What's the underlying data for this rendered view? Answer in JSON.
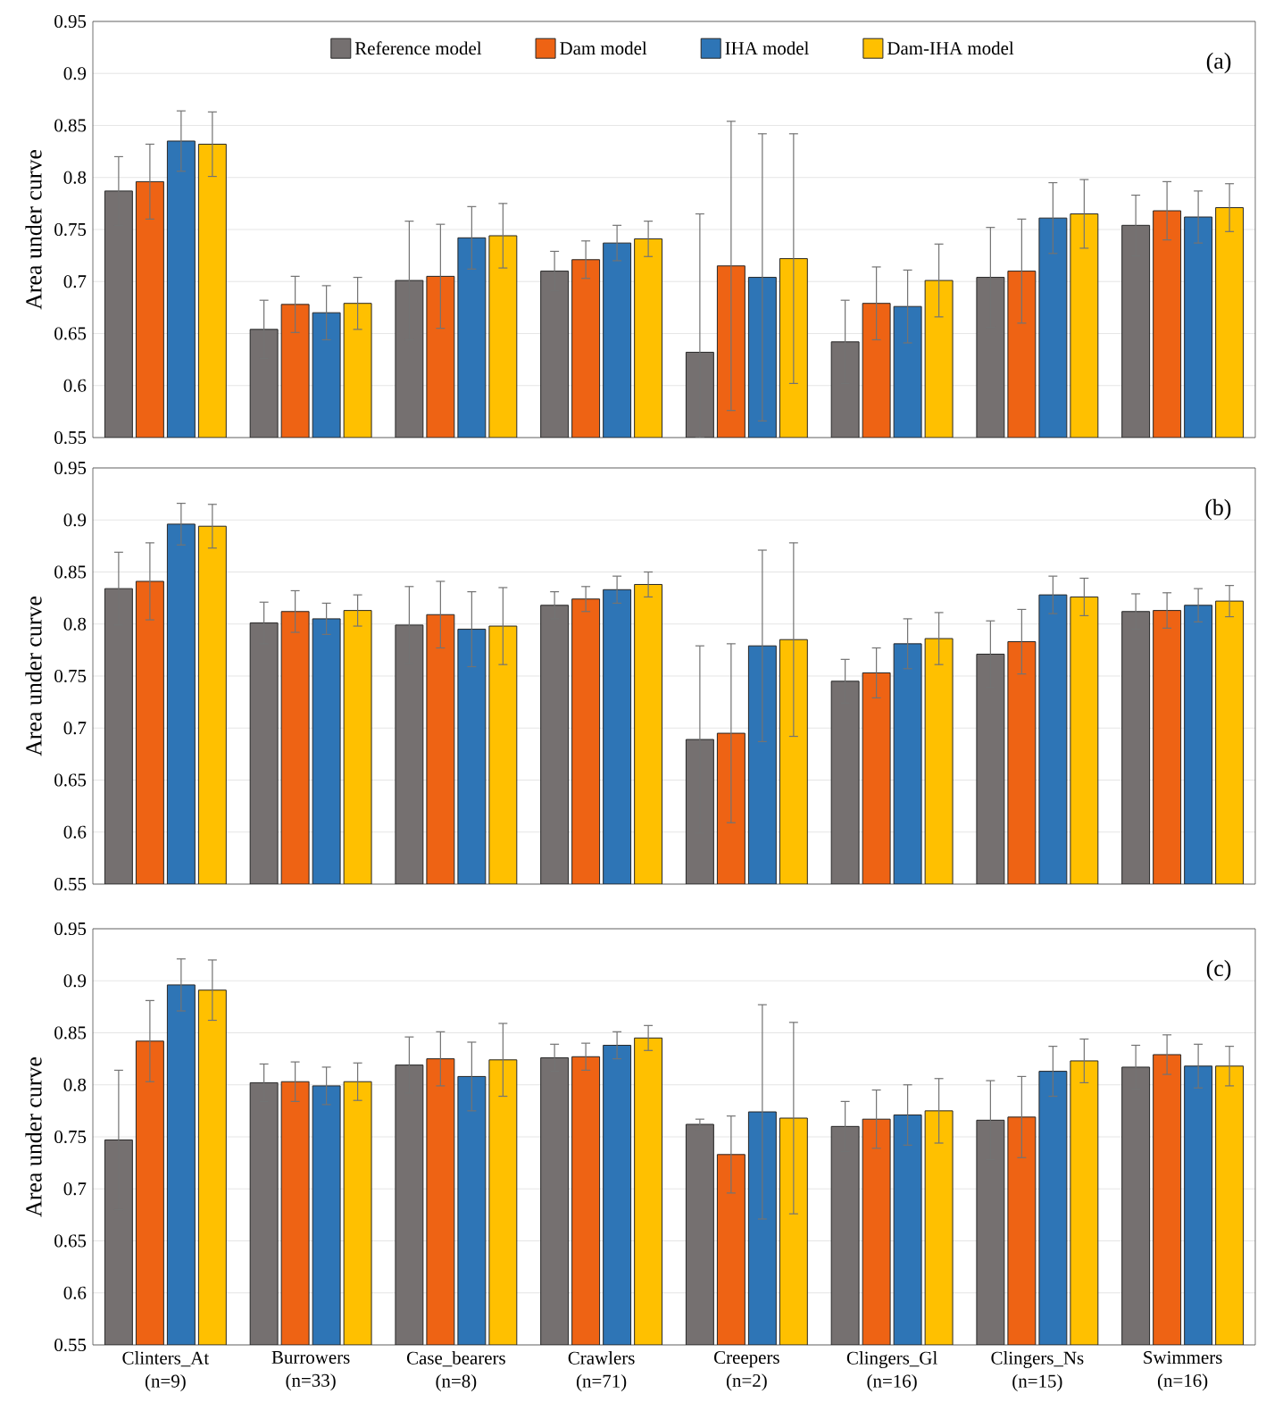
{
  "chart_data": [
    {
      "type": "bar",
      "ylabel": "Area under curve",
      "annotations": [
        "(a)"
      ],
      "categories": [
        null,
        null,
        null,
        null,
        null,
        null,
        null,
        null
      ],
      "ylim": [
        0.55,
        0.95
      ],
      "yticks": [
        0.55,
        0.6,
        0.65,
        0.7,
        0.75,
        0.8,
        0.85,
        0.9,
        0.95
      ],
      "grid": "y",
      "legend": "top",
      "tick_labels": "y",
      "series": [
        {
          "name": "Reference model",
          "color": "#757070",
          "values": [
            0.787,
            0.654,
            0.701,
            0.71,
            0.632,
            0.642,
            0.704,
            0.754
          ],
          "errors": [
            0.033,
            0.028,
            0.057,
            0.019,
            [
              0.55,
              0.765
            ],
            0.04,
            0.048,
            0.029
          ]
        },
        {
          "name": "Dam model",
          "color": "#ee6314",
          "values": [
            0.796,
            0.678,
            0.705,
            0.721,
            0.715,
            0.679,
            0.71,
            0.768
          ],
          "errors": [
            0.036,
            0.027,
            0.05,
            0.018,
            0.139,
            0.035,
            0.05,
            0.028
          ]
        },
        {
          "name": "IHA model",
          "color": "#2e75b6",
          "values": [
            0.835,
            0.67,
            0.742,
            0.737,
            0.704,
            0.676,
            0.761,
            0.762
          ],
          "errors": [
            0.029,
            0.026,
            0.03,
            0.017,
            0.138,
            0.035,
            0.034,
            0.025
          ]
        },
        {
          "name": "Dam-IHA model",
          "color": "#ffc000",
          "values": [
            0.832,
            0.679,
            0.744,
            0.741,
            0.722,
            0.701,
            0.765,
            0.771
          ],
          "errors": [
            0.031,
            0.025,
            0.031,
            0.017,
            0.12,
            0.035,
            0.033,
            0.023
          ]
        }
      ]
    },
    {
      "type": "bar",
      "ylabel": "Area under curve",
      "annotations": [
        "(b)"
      ],
      "categories": [
        null,
        null,
        null,
        null,
        null,
        null,
        null,
        null
      ],
      "ylim": [
        0.55,
        0.95
      ],
      "yticks": [
        0.55,
        0.6,
        0.65,
        0.7,
        0.75,
        0.8,
        0.85,
        0.9,
        0.95
      ],
      "grid": "y",
      "tick_labels": "y",
      "series": [
        {
          "color": "#757070",
          "values": [
            0.834,
            0.801,
            0.799,
            0.818,
            0.689,
            0.745,
            0.771,
            0.812
          ],
          "errors": [
            0.035,
            0.02,
            0.037,
            0.013,
            0.09,
            0.021,
            0.032,
            0.017
          ]
        },
        {
          "color": "#ee6314",
          "values": [
            0.841,
            0.812,
            0.809,
            0.824,
            0.695,
            0.753,
            0.783,
            0.813
          ],
          "errors": [
            0.037,
            0.02,
            0.032,
            0.012,
            0.086,
            0.024,
            0.031,
            0.017
          ]
        },
        {
          "color": "#2e75b6",
          "values": [
            0.896,
            0.805,
            0.795,
            0.833,
            0.779,
            0.781,
            0.828,
            0.818
          ],
          "errors": [
            0.02,
            0.015,
            0.036,
            0.013,
            0.092,
            0.024,
            0.018,
            0.016
          ]
        },
        {
          "color": "#ffc000",
          "values": [
            0.894,
            0.813,
            0.798,
            0.838,
            0.785,
            0.786,
            0.826,
            0.822
          ],
          "errors": [
            0.021,
            0.015,
            0.037,
            0.012,
            0.093,
            0.025,
            0.018,
            0.015
          ]
        }
      ]
    },
    {
      "type": "bar",
      "ylabel": "Area under curve",
      "annotations": [
        "(c)"
      ],
      "categories": [
        "Clinters_At (n=9)",
        "Burrowers (n=33)",
        "Case_bearers (n=8)",
        "Crawlers (n=71)",
        "Creepers (n=2)",
        "Clingers_Gl (n=16)",
        "Clingers_Ns (n=15)",
        "Swimmers (n=16)"
      ],
      "ylim": [
        0.55,
        0.95
      ],
      "yticks": [
        0.55,
        0.6,
        0.65,
        0.7,
        0.75,
        0.8,
        0.85,
        0.9,
        0.95
      ],
      "grid": "y",
      "series": [
        {
          "color": "#757070",
          "values": [
            0.747,
            0.802,
            0.819,
            0.826,
            0.762,
            0.76,
            0.766,
            0.817
          ],
          "errors": [
            0.067,
            0.018,
            0.027,
            0.013,
            0.005,
            0.024,
            0.038,
            0.021
          ]
        },
        {
          "color": "#ee6314",
          "values": [
            0.842,
            0.803,
            0.825,
            0.827,
            0.733,
            0.767,
            0.769,
            0.829
          ],
          "errors": [
            0.039,
            0.019,
            0.026,
            0.013,
            0.037,
            0.028,
            0.039,
            0.019
          ]
        },
        {
          "color": "#2e75b6",
          "values": [
            0.896,
            0.799,
            0.808,
            0.838,
            0.774,
            0.771,
            0.813,
            0.818
          ],
          "errors": [
            0.025,
            0.018,
            0.033,
            0.013,
            0.103,
            0.029,
            0.024,
            0.021
          ]
        },
        {
          "color": "#ffc000",
          "values": [
            0.891,
            0.803,
            0.824,
            0.845,
            0.768,
            0.775,
            0.823,
            0.818
          ],
          "errors": [
            0.029,
            0.018,
            0.035,
            0.012,
            0.092,
            0.031,
            0.021,
            0.019
          ]
        }
      ]
    }
  ]
}
